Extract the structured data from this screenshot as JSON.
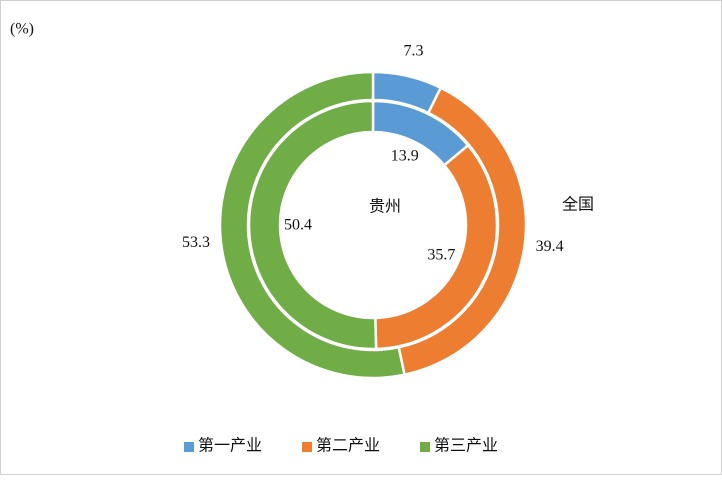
{
  "chart_data": {
    "type": "donut",
    "unit_label": "(%)",
    "categories": [
      "第一产业",
      "第二产业",
      "第三产业"
    ],
    "colors": [
      "#5b9bd5",
      "#ed7d31",
      "#70ad47"
    ],
    "series": [
      {
        "name": "全国",
        "values": [
          7.3,
          39.4,
          53.3
        ]
      },
      {
        "name": "贵州",
        "values": [
          13.9,
          35.7,
          50.4
        ]
      }
    ],
    "legend": "bottom"
  }
}
